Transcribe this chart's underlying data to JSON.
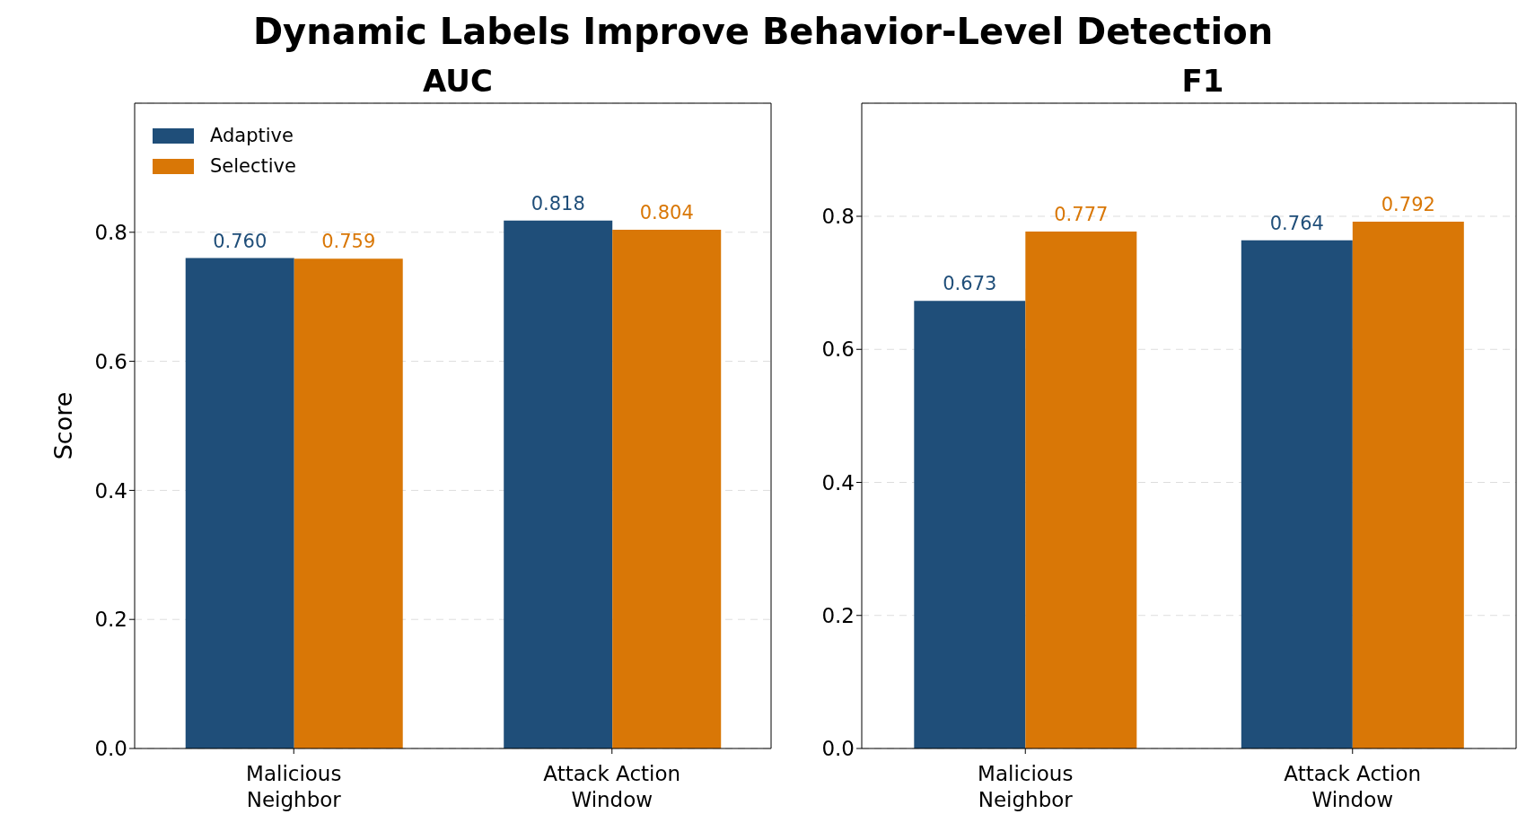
{
  "chart_data": [
    {
      "type": "bar",
      "title": "Dynamic Labels Improve Behavior-Level Detection",
      "subtitle": "AUC",
      "ylabel": "Score",
      "categories": [
        "Malicious Neighbor",
        "Attack Action Window"
      ],
      "series": [
        {
          "name": "Adaptive",
          "color": "#1f4e79",
          "values": [
            0.76,
            0.818
          ],
          "value_labels": [
            "0.760",
            "0.818"
          ]
        },
        {
          "name": "Selective",
          "color": "#d97706",
          "values": [
            0.759,
            0.804
          ],
          "value_labels": [
            "0.759",
            "0.804"
          ]
        }
      ],
      "ylim": [
        0,
        1.0
      ],
      "yticks": [
        {
          "value": 0,
          "label": "0.0"
        },
        0.2,
        0.4,
        0.6,
        0.8
      ],
      "grid": "y",
      "legend": "top left"
    },
    {
      "type": "bar",
      "title": "F1",
      "categories": [
        "Malicious Neighbor",
        "Attack Action Window"
      ],
      "series": [
        {
          "color": "#1f4e79",
          "values": [
            0.673,
            0.764
          ],
          "value_labels": [
            "0.673",
            "0.764"
          ]
        },
        {
          "color": "#d97706",
          "values": [
            0.777,
            0.792
          ],
          "value_labels": [
            "0.777",
            "0.792"
          ]
        }
      ],
      "ylim": [
        0,
        0.97
      ],
      "yticks": [
        {
          "value": 0,
          "label": "0.0"
        },
        0.2,
        0.4,
        0.6,
        0.8
      ],
      "grid": "y",
      "legend": false
    }
  ]
}
